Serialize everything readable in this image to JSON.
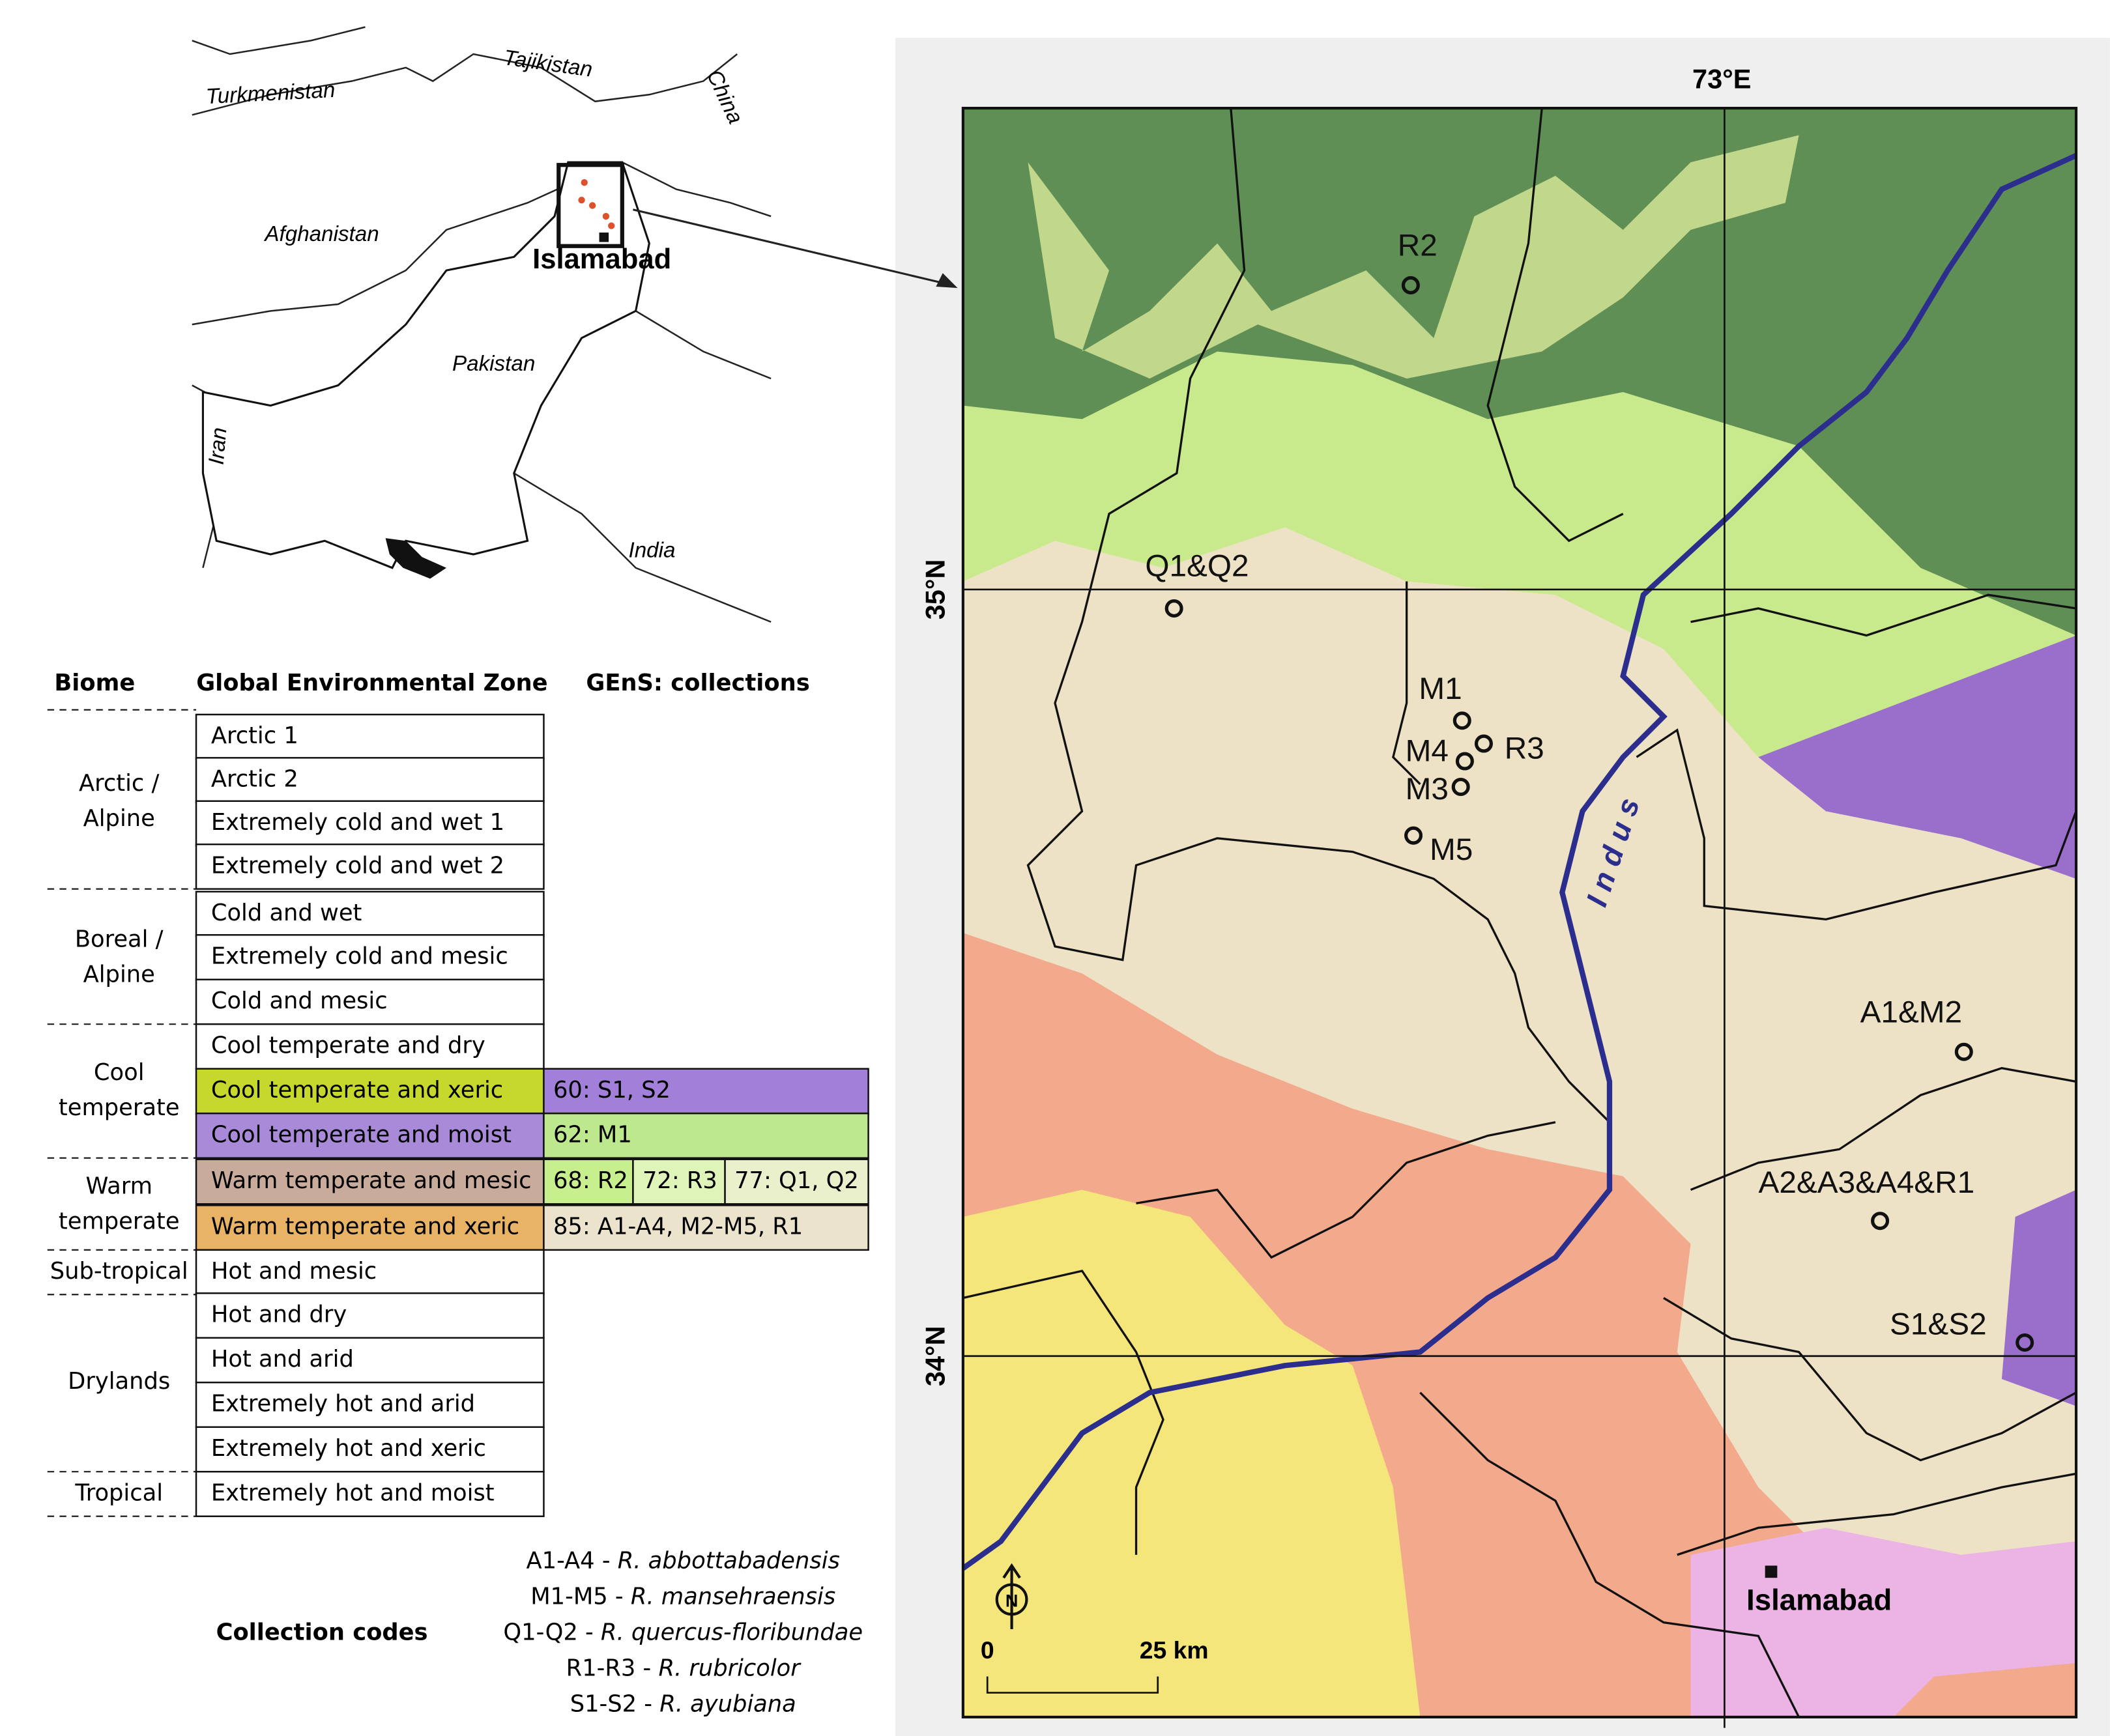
{
  "inset_map": {
    "countries": [
      "Turkmenistan",
      "Tajikistan",
      "China",
      "Afghanistan",
      "Pakistan",
      "Iran",
      "India"
    ],
    "city": "Islamabad"
  },
  "table": {
    "headers": [
      "Biome",
      "Global Environmental Zone",
      "GEnS: collections"
    ],
    "biomes": [
      [
        "Arctic /",
        "Alpine"
      ],
      [
        "Boreal /",
        "Alpine"
      ],
      [
        "Cool",
        "temperate"
      ],
      [
        "Warm",
        "temperate"
      ],
      [
        "Sub-tropical"
      ],
      [
        "Drylands"
      ],
      [
        "Tropical"
      ]
    ],
    "zones": [
      {
        "name": "Arctic 1"
      },
      {
        "name": "Arctic 2"
      },
      {
        "name": "Extremely cold and wet 1"
      },
      {
        "name": "Extremely cold and wet 2"
      },
      {
        "name": "Cold and wet"
      },
      {
        "name": "Extremely cold and mesic"
      },
      {
        "name": "Cold and mesic"
      },
      {
        "name": "Cool temperate and dry"
      },
      {
        "name": "Cool temperate and xeric",
        "color": "#c6d82c",
        "collections": [
          {
            "label": "60: S1, S2",
            "color": "#a27fd8"
          }
        ]
      },
      {
        "name": "Cool temperate and moist",
        "color": "#a98ad8",
        "collections": [
          {
            "label": "62: M1",
            "color": "#bde88e"
          }
        ]
      },
      {
        "name": "Warm temperate and mesic",
        "color": "#c9ab9b",
        "collections": [
          {
            "label": "68: R2",
            "color": "#c8ef8e"
          },
          {
            "label": "72: R3",
            "color": "#dff4b8"
          },
          {
            "label": "77: Q1, Q2",
            "color": "#eaf0cc"
          }
        ]
      },
      {
        "name": "Warm temperate and xeric",
        "color": "#e9b366",
        "collections": [
          {
            "label": "85: A1-A4, M2-M5, R1",
            "color": "#ebe3cc"
          }
        ]
      },
      {
        "name": "Hot and mesic"
      },
      {
        "name": "Hot and dry"
      },
      {
        "name": "Hot and arid"
      },
      {
        "name": "Extremely hot and arid"
      },
      {
        "name": "Extremely hot and xeric"
      },
      {
        "name": "Extremely hot and moist"
      }
    ]
  },
  "collection_codes": {
    "title": "Collection codes",
    "entries": [
      {
        "code": "A1-A4 - ",
        "species": "R. abbottabadensis"
      },
      {
        "code": "M1-M5 - ",
        "species": "R. mansehraensis"
      },
      {
        "code": "Q1-Q2 - ",
        "species": "R. quercus-floribundae"
      },
      {
        "code": "R1-R3 - ",
        "species": "R. rubricolor"
      },
      {
        "code": "S1-S2 - ",
        "species": "R. ayubiana"
      }
    ]
  },
  "main_map": {
    "lon_label": "73°E",
    "lat_labels": [
      "35°N",
      "34°N"
    ],
    "river": "Indus",
    "north": "N",
    "scale": [
      "0",
      "25 km"
    ],
    "city": "Islamabad",
    "sites": [
      "R2",
      "Q1&Q2",
      "M1",
      "R3",
      "M4",
      "M3",
      "M5",
      "A1&M2",
      "A2&A3&A4&R1",
      "S1&S2"
    ]
  }
}
